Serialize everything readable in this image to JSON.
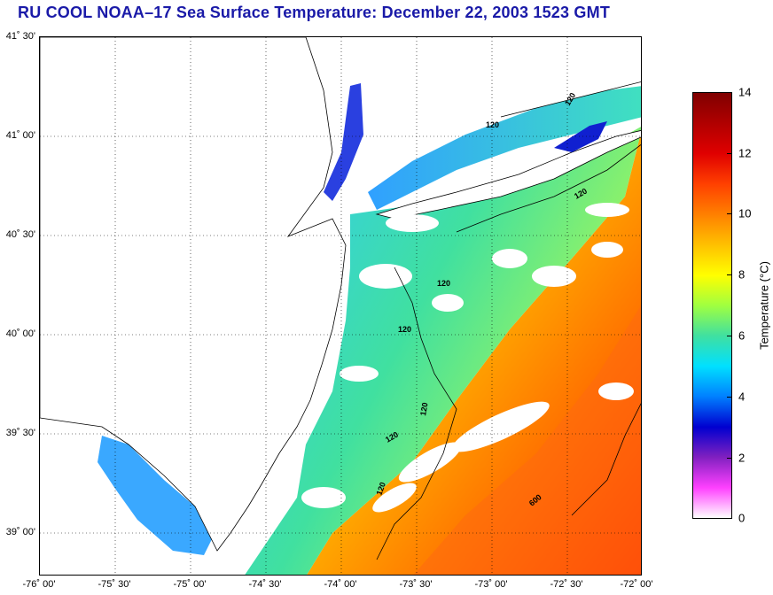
{
  "title": "RU COOL  NOAA–17  Sea Surface Temperature:  December 22, 2003 1523 GMT",
  "map": {
    "lat_labels": [
      "41˚ 30'",
      "41˚ 00'",
      "40˚ 30'",
      "40˚ 00'",
      "39˚ 30'",
      "39˚ 00'"
    ],
    "lon_labels": [
      "-76˚ 00'",
      "-75˚ 30'",
      "-75˚ 00'",
      "-74˚ 30'",
      "-74˚ 00'",
      "-73˚ 30'",
      "-73˚ 00'",
      "-72˚ 30'",
      "-72˚ 00'"
    ],
    "lat_range": [
      38.78,
      41.5
    ],
    "lon_range": [
      -76.0,
      -72.0
    ],
    "grid": "dotted",
    "contour_labels": [
      "120",
      "120",
      "120",
      "120",
      "120",
      "120",
      "120",
      "120",
      "600"
    ]
  },
  "colorbar": {
    "label": "Temperature (°C)",
    "ticks": [
      "14",
      "12",
      "10",
      "8",
      "6",
      "4",
      "2",
      "0"
    ],
    "range": [
      0,
      14
    ],
    "colors": [
      "#ffffff",
      "#ff40ff",
      "#8020c0",
      "#0000d0",
      "#0080ff",
      "#00e0ff",
      "#40e0a0",
      "#a0ff40",
      "#ffff00",
      "#ffc000",
      "#ff8000",
      "#ff4000",
      "#e00000",
      "#b00000",
      "#800000"
    ]
  }
}
